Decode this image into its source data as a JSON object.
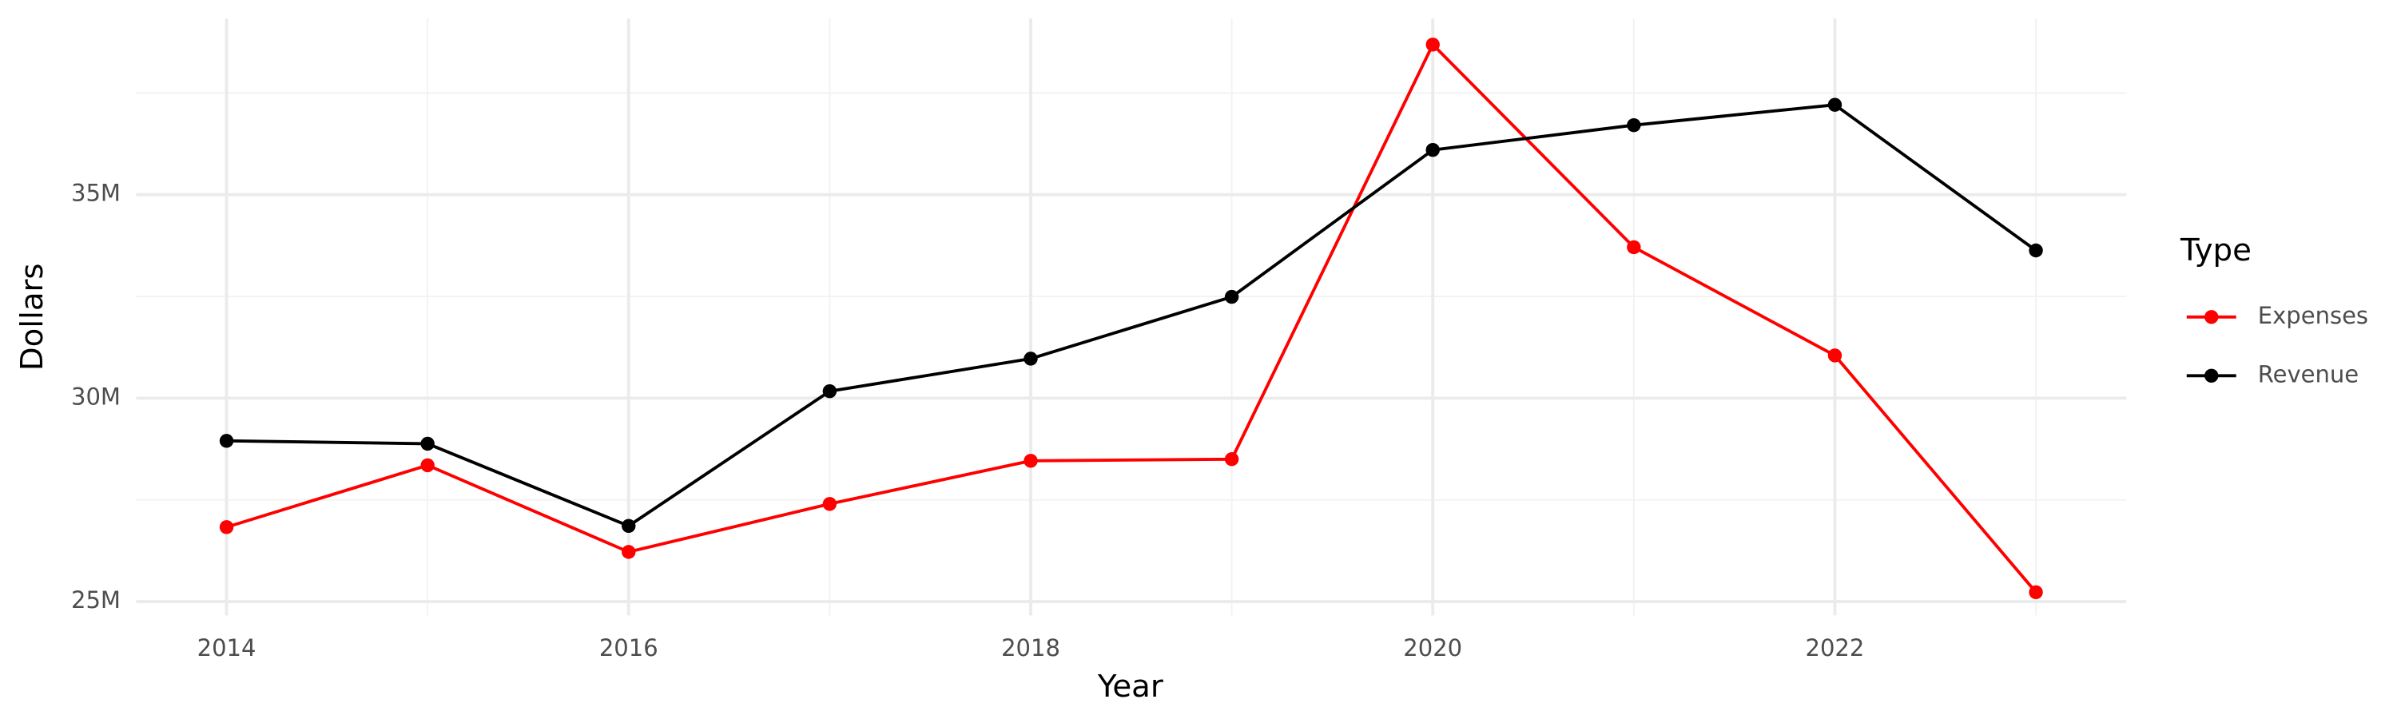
{
  "chart_data": {
    "type": "line",
    "x_label": "Year",
    "y_label": "Dollars",
    "legend_title": "Type",
    "x": [
      2014,
      2015,
      2016,
      2017,
      2018,
      2019,
      2020,
      2021,
      2022,
      2023
    ],
    "series": [
      {
        "name": "Expenses",
        "color": "#ff0000",
        "values": [
          26830000,
          28350000,
          26220000,
          27400000,
          28460000,
          28500000,
          38690000,
          33710000,
          31050000,
          25230000
        ]
      },
      {
        "name": "Revenue",
        "color": "#000000",
        "values": [
          28950000,
          28880000,
          26860000,
          30170000,
          30970000,
          32490000,
          36100000,
          36710000,
          37210000,
          33630000
        ]
      }
    ],
    "xlim": [
      2013.55,
      2023.45
    ],
    "xticks": [
      2014,
      2016,
      2018,
      2020,
      2022
    ],
    "ylim": [
      24660000,
      39330000
    ],
    "yticks": [
      {
        "value": 25000000,
        "label": "25M"
      },
      {
        "value": 30000000,
        "label": "30M"
      },
      {
        "value": 35000000,
        "label": "35M"
      }
    ],
    "grid": true,
    "legend": "right"
  }
}
